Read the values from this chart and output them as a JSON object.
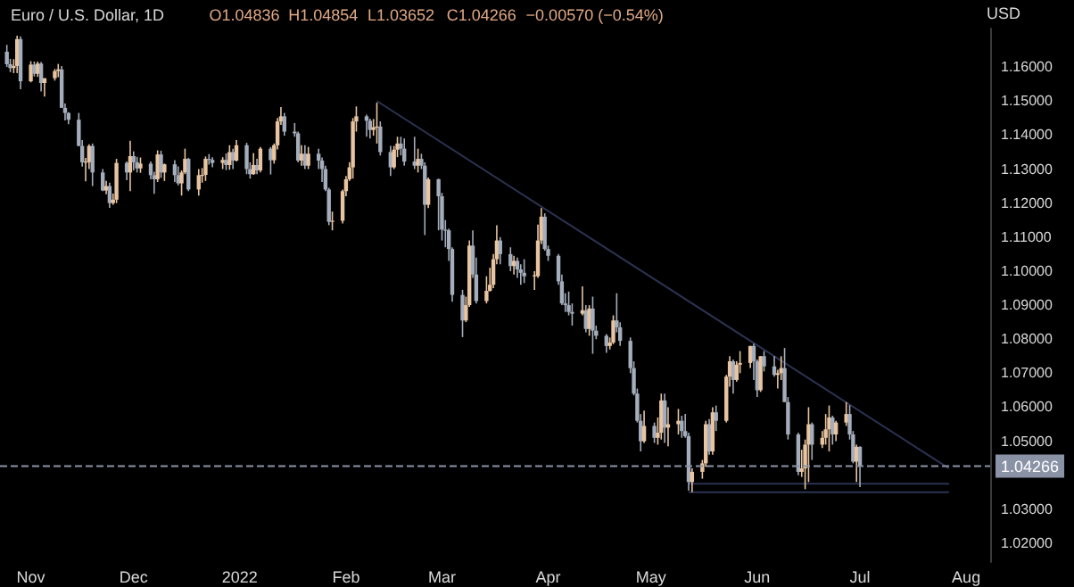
{
  "chart_data": {
    "type": "candlestick",
    "title": "Euro / U.S. Dollar, 1D",
    "annotations": [
      "O1.04836",
      "H1.04854",
      "L1.03652",
      "C1.04266",
      "−0.00570 (−0.54%)"
    ],
    "ylabel": "USD",
    "colors": [
      "#a4adbb",
      "#a4adbb",
      "#e8c4a0",
      "#e8c4a0",
      "#a4adbb",
      "#e8c4a0",
      "#a4adbb",
      "#e8c4a0",
      "#a4adbb",
      "#e8c4a0",
      "#e8c4a0",
      "#e8c4a0",
      "#a4adbb",
      "#a4adbb",
      "#a4adbb",
      "#a4adbb",
      "#a4adbb",
      "#e8c4a0",
      "#e8c4a0",
      "#a4adbb",
      "#a4adbb",
      "#e8c4a0",
      "#a4adbb",
      "#e8c4a0",
      "#e8c4a0",
      "#a4adbb",
      "#e8c4a0",
      "#a4adbb",
      "#a4adbb",
      "#e8c4a0",
      "#a4adbb",
      "#a4adbb",
      "#e8c4a0",
      "#a4adbb",
      "#e8c4a0",
      "#a4adbb",
      "#a4adbb",
      "#e8c4a0",
      "#e8c4a0",
      "#a4adbb",
      "#e8c4a0",
      "#e8c4a0",
      "#e8c4a0",
      "#a4adbb",
      "#a4adbb",
      "#e8c4a0",
      "#a4adbb",
      "#e8c4a0",
      "#a4adbb",
      "#e8c4a0",
      "#a4adbb",
      "#a4adbb",
      "#e8c4a0",
      "#a4adbb",
      "#e8c4a0",
      "#a4adbb",
      "#e8c4a0",
      "#e8c4a0",
      "#e8c4a0",
      "#a4adbb",
      "#a4adbb",
      "#a4adbb",
      "#e8c4a0",
      "#a4adbb",
      "#e8c4a0",
      "#a4adbb",
      "#a4adbb",
      "#a4adbb",
      "#a4adbb",
      "#e8c4a0",
      "#e8c4a0",
      "#e8c4a0",
      "#e8c4a0",
      "#e8c4a0",
      "#e8c4a0",
      "#a4adbb",
      "#a4adbb",
      "#e8c4a0",
      "#e8c4a0",
      "#a4adbb",
      "#a4adbb",
      "#e8c4a0",
      "#e8c4a0",
      "#a4adbb",
      "#a4adbb",
      "#a4adbb",
      "#e8c4a0",
      "#a4adbb",
      "#a4adbb",
      "#e8c4a0",
      "#a4adbb",
      "#a4adbb",
      "#a4adbb",
      "#a4adbb",
      "#a4adbb",
      "#a4adbb",
      "#e8c4a0",
      "#e8c4a0",
      "#a4adbb",
      "#a4adbb",
      "#e8c4a0",
      "#e8c4a0",
      "#e8c4a0",
      "#e8c4a0",
      "#a4adbb",
      "#a4adbb",
      "#e8c4a0",
      "#a4adbb",
      "#a4adbb",
      "#a4adbb",
      "#e8c4a0",
      "#e8c4a0",
      "#e8c4a0",
      "#a4adbb",
      "#a4adbb",
      "#a4adbb",
      "#a4adbb",
      "#a4adbb",
      "#a4adbb",
      "#a4adbb",
      "#e8c4a0",
      "#a4adbb",
      "#e8c4a0",
      "#a4adbb",
      "#a4adbb",
      "#a4adbb",
      "#e8c4a0",
      "#e8c4a0",
      "#a4adbb",
      "#a4adbb",
      "#a4adbb",
      "#a4adbb",
      "#a4adbb",
      "#a4adbb",
      "#e8c4a0",
      "#a4adbb",
      "#e8c4a0",
      "#e8c4a0",
      "#a4adbb",
      "#e8c4a0",
      "#e8c4a0",
      "#a4adbb",
      "#a4adbb",
      "#a4adbb",
      "#e8c4a0",
      "#e8c4a0",
      "#e8c4a0",
      "#a4adbb",
      "#e8c4a0",
      "#a4adbb",
      "#e8c4a0",
      "#e8c4a0",
      "#a4adbb",
      "#e8c4a0",
      "#e8c4a0",
      "#e8c4a0",
      "#a4adbb",
      "#a4adbb",
      "#e8c4a0",
      "#a4adbb",
      "#a4adbb",
      "#e8c4a0",
      "#e8c4a0",
      "#a4adbb",
      "#a4adbb",
      "#a4adbb",
      "#e8c4a0",
      "#e8c4a0",
      "#e8c4a0",
      "#a4adbb",
      "#e8c4a0",
      "#e8c4a0",
      "#e8c4a0",
      "#a4adbb",
      "#e8c4a0",
      "#e8c4a0",
      "#a4adbb",
      "#a4adbb",
      "#e8c4a0",
      "#a4adbb"
    ],
    "x": [
      "2021-10-25",
      "2021-10-26",
      "2021-10-27",
      "2021-10-28",
      "2021-10-29",
      "2021-11-01",
      "2021-11-02",
      "2021-11-03",
      "2021-11-04",
      "2021-11-05",
      "2021-11-08",
      "2021-11-09",
      "2021-11-10",
      "2021-11-11",
      "2021-11-12",
      "2021-11-15",
      "2021-11-16",
      "2021-11-17",
      "2021-11-18",
      "2021-11-19",
      "2021-11-22",
      "2021-11-23",
      "2021-11-24",
      "2021-11-25",
      "2021-11-26",
      "2021-11-29",
      "2021-11-30",
      "2021-12-01",
      "2021-12-02",
      "2021-12-03",
      "2021-12-06",
      "2021-12-07",
      "2021-12-08",
      "2021-12-09",
      "2021-12-10",
      "2021-12-13",
      "2021-12-14",
      "2021-12-15",
      "2021-12-16",
      "2021-12-17",
      "2021-12-20",
      "2021-12-21",
      "2021-12-22",
      "2021-12-23",
      "2021-12-24",
      "2021-12-27",
      "2021-12-28",
      "2021-12-29",
      "2021-12-30",
      "2021-12-31",
      "2022-01-03",
      "2022-01-04",
      "2022-01-05",
      "2022-01-06",
      "2022-01-07",
      "2022-01-10",
      "2022-01-11",
      "2022-01-12",
      "2022-01-13",
      "2022-01-14",
      "2022-01-17",
      "2022-01-18",
      "2022-01-19",
      "2022-01-20",
      "2022-01-21",
      "2022-01-24",
      "2022-01-25",
      "2022-01-26",
      "2022-01-27",
      "2022-01-28",
      "2022-01-31",
      "2022-02-01",
      "2022-02-02",
      "2022-02-03",
      "2022-02-04",
      "2022-02-07",
      "2022-02-08",
      "2022-02-09",
      "2022-02-10",
      "2022-02-11",
      "2022-02-14",
      "2022-02-15",
      "2022-02-16",
      "2022-02-17",
      "2022-02-18",
      "2022-02-21",
      "2022-02-22",
      "2022-02-23",
      "2022-02-24",
      "2022-02-25",
      "2022-02-28",
      "2022-03-01",
      "2022-03-02",
      "2022-03-03",
      "2022-03-04",
      "2022-03-07",
      "2022-03-08",
      "2022-03-09",
      "2022-03-10",
      "2022-03-11",
      "2022-03-14",
      "2022-03-15",
      "2022-03-16",
      "2022-03-17",
      "2022-03-18",
      "2022-03-21",
      "2022-03-22",
      "2022-03-23",
      "2022-03-24",
      "2022-03-25",
      "2022-03-28",
      "2022-03-29",
      "2022-03-30",
      "2022-03-31",
      "2022-04-01",
      "2022-04-04",
      "2022-04-05",
      "2022-04-06",
      "2022-04-07",
      "2022-04-08",
      "2022-04-11",
      "2022-04-12",
      "2022-04-13",
      "2022-04-14",
      "2022-04-15",
      "2022-04-18",
      "2022-04-19",
      "2022-04-20",
      "2022-04-21",
      "2022-04-22",
      "2022-04-25",
      "2022-04-26",
      "2022-04-27",
      "2022-04-28",
      "2022-04-29",
      "2022-05-02",
      "2022-05-03",
      "2022-05-04",
      "2022-05-05",
      "2022-05-06",
      "2022-05-09",
      "2022-05-10",
      "2022-05-11",
      "2022-05-12",
      "2022-05-13",
      "2022-05-16",
      "2022-05-17",
      "2022-05-18",
      "2022-05-19",
      "2022-05-20",
      "2022-05-23",
      "2022-05-24",
      "2022-05-25",
      "2022-05-26",
      "2022-05-27",
      "2022-05-30",
      "2022-05-31",
      "2022-06-01",
      "2022-06-02",
      "2022-06-03",
      "2022-06-06",
      "2022-06-07",
      "2022-06-08",
      "2022-06-09",
      "2022-06-10",
      "2022-06-13",
      "2022-06-14",
      "2022-06-15",
      "2022-06-16",
      "2022-06-17",
      "2022-06-20",
      "2022-06-21",
      "2022-06-22",
      "2022-06-23",
      "2022-06-24",
      "2022-06-27",
      "2022-06-28",
      "2022-06-29",
      "2022-06-30",
      "2022-07-01"
    ],
    "ohlc": [
      [
        1.1645,
        1.1665,
        1.16,
        1.1608
      ],
      [
        1.1608,
        1.1624,
        1.1585,
        1.1597
      ],
      [
        1.1597,
        1.1623,
        1.1582,
        1.1603
      ],
      [
        1.1603,
        1.1692,
        1.1582,
        1.1682
      ],
      [
        1.1682,
        1.169,
        1.1535,
        1.1558
      ],
      [
        1.1558,
        1.1617,
        1.1555,
        1.1607
      ],
      [
        1.1607,
        1.1616,
        1.1572,
        1.158
      ],
      [
        1.158,
        1.1616,
        1.1571,
        1.161
      ],
      [
        1.161,
        1.1615,
        1.1528,
        1.1553
      ],
      [
        1.1553,
        1.1567,
        1.1513,
        1.1567
      ],
      [
        1.1567,
        1.1594,
        1.156,
        1.1588
      ],
      [
        1.1588,
        1.1609,
        1.157,
        1.1593
      ],
      [
        1.1593,
        1.1603,
        1.148,
        1.148
      ],
      [
        1.148,
        1.1493,
        1.1443,
        1.1465
      ],
      [
        1.1465,
        1.1467,
        1.1432,
        1.1445
      ],
      [
        1.1445,
        1.1465,
        1.1367,
        1.1368
      ],
      [
        1.1368,
        1.1385,
        1.1307,
        1.132
      ],
      [
        1.132,
        1.1333,
        1.1264,
        1.1322
      ],
      [
        1.132,
        1.1373,
        1.13,
        1.1368
      ],
      [
        1.1368,
        1.1375,
        1.125,
        1.129
      ],
      [
        1.129,
        1.13,
        1.1235,
        1.1237
      ],
      [
        1.1237,
        1.1265,
        1.1226,
        1.125
      ],
      [
        1.125,
        1.126,
        1.1186,
        1.12
      ],
      [
        1.12,
        1.1228,
        1.1195,
        1.121
      ],
      [
        1.121,
        1.133,
        1.12,
        1.1318
      ],
      [
        1.1318,
        1.1322,
        1.1267,
        1.129
      ],
      [
        1.129,
        1.1383,
        1.1235,
        1.1338
      ],
      [
        1.1338,
        1.1352,
        1.1296,
        1.132
      ],
      [
        1.132,
        1.1336,
        1.129,
        1.1302
      ],
      [
        1.1302,
        1.1334,
        1.1289,
        1.1316
      ],
      [
        1.1316,
        1.1322,
        1.127,
        1.1282
      ],
      [
        1.1282,
        1.1292,
        1.1227,
        1.127
      ],
      [
        1.127,
        1.1355,
        1.1262,
        1.1343
      ],
      [
        1.1343,
        1.1354,
        1.1274,
        1.129
      ],
      [
        1.129,
        1.1316,
        1.1265,
        1.1314
      ],
      [
        1.1314,
        1.1326,
        1.1262,
        1.1282
      ],
      [
        1.1282,
        1.1308,
        1.1252,
        1.1258
      ],
      [
        1.1258,
        1.1296,
        1.1222,
        1.129
      ],
      [
        1.129,
        1.136,
        1.1285,
        1.133
      ],
      [
        1.133,
        1.1333,
        1.1235,
        1.124
      ],
      [
        1.124,
        1.13,
        1.1222,
        1.1282
      ],
      [
        1.1282,
        1.1303,
        1.126,
        1.1283
      ],
      [
        1.1283,
        1.1337,
        1.1265,
        1.133
      ],
      [
        1.133,
        1.1344,
        1.1313,
        1.1327
      ],
      [
        1.1327,
        1.1335,
        1.1305,
        1.1318
      ],
      [
        1.1318,
        1.1335,
        1.13,
        1.1327
      ],
      [
        1.1327,
        1.1346,
        1.1297,
        1.1312
      ],
      [
        1.1312,
        1.137,
        1.1298,
        1.135
      ],
      [
        1.135,
        1.136,
        1.13,
        1.1325
      ],
      [
        1.1325,
        1.1385,
        1.1322,
        1.137
      ],
      [
        1.137,
        1.1377,
        1.1285,
        1.13
      ],
      [
        1.13,
        1.132,
        1.1272,
        1.1285
      ],
      [
        1.1285,
        1.1347,
        1.1283,
        1.1312
      ],
      [
        1.1312,
        1.133,
        1.1285,
        1.1296
      ],
      [
        1.1296,
        1.1365,
        1.129,
        1.136
      ],
      [
        1.136,
        1.1365,
        1.1284,
        1.1326
      ],
      [
        1.1326,
        1.1375,
        1.1316,
        1.137
      ],
      [
        1.137,
        1.145,
        1.1358,
        1.144
      ],
      [
        1.144,
        1.1482,
        1.143,
        1.1455
      ],
      [
        1.1455,
        1.1465,
        1.1398,
        1.141
      ],
      [
        1.141,
        1.1435,
        1.1395,
        1.1405
      ],
      [
        1.1405,
        1.141,
        1.132,
        1.1325
      ],
      [
        1.1325,
        1.137,
        1.131,
        1.1345
      ],
      [
        1.1345,
        1.137,
        1.13,
        1.131
      ],
      [
        1.131,
        1.1365,
        1.13,
        1.1345
      ],
      [
        1.1345,
        1.136,
        1.13,
        1.1325
      ],
      [
        1.1325,
        1.1334,
        1.1262,
        1.13
      ],
      [
        1.13,
        1.131,
        1.1235,
        1.124
      ],
      [
        1.124,
        1.1245,
        1.1135,
        1.1145
      ],
      [
        1.1145,
        1.1175,
        1.112,
        1.1148
      ],
      [
        1.1148,
        1.124,
        1.114,
        1.1235
      ],
      [
        1.1235,
        1.128,
        1.122,
        1.127
      ],
      [
        1.127,
        1.132,
        1.1265,
        1.1305
      ],
      [
        1.1305,
        1.145,
        1.1272,
        1.144
      ],
      [
        1.144,
        1.1484,
        1.141,
        1.1455
      ],
      [
        1.1455,
        1.146,
        1.1395,
        1.1442
      ],
      [
        1.1442,
        1.1448,
        1.139,
        1.1415
      ],
      [
        1.1415,
        1.1447,
        1.1398,
        1.1423
      ],
      [
        1.1423,
        1.1495,
        1.1375,
        1.1425
      ],
      [
        1.1425,
        1.144,
        1.134,
        1.135
      ],
      [
        1.135,
        1.1368,
        1.128,
        1.1305
      ],
      [
        1.1305,
        1.1368,
        1.13,
        1.1357
      ],
      [
        1.1357,
        1.1395,
        1.1335,
        1.1375
      ],
      [
        1.1375,
        1.1395,
        1.134,
        1.136
      ],
      [
        1.136,
        1.139,
        1.131,
        1.1322
      ],
      [
        1.1322,
        1.1395,
        1.13,
        1.131
      ],
      [
        1.131,
        1.136,
        1.129,
        1.133
      ],
      [
        1.133,
        1.1345,
        1.13,
        1.131
      ],
      [
        1.131,
        1.132,
        1.1106,
        1.1195
      ],
      [
        1.1195,
        1.1275,
        1.1185,
        1.127
      ],
      [
        1.127,
        1.1272,
        1.112,
        1.122
      ],
      [
        1.122,
        1.123,
        1.109,
        1.1122
      ],
      [
        1.1122,
        1.115,
        1.107,
        1.112
      ],
      [
        1.112,
        1.1125,
        1.103,
        1.1065
      ],
      [
        1.1065,
        1.107,
        1.091,
        1.093
      ],
      [
        1.093,
        1.0945,
        1.0806,
        1.0855
      ],
      [
        1.0855,
        1.0925,
        1.085,
        1.09
      ],
      [
        1.09,
        1.109,
        1.0895,
        1.1075
      ],
      [
        1.1075,
        1.112,
        1.098,
        1.099
      ],
      [
        1.099,
        1.104,
        1.0905,
        1.0912
      ],
      [
        1.0912,
        1.0985,
        1.0905,
        1.0942
      ],
      [
        1.0942,
        1.101,
        1.094,
        1.096
      ],
      [
        1.096,
        1.105,
        1.095,
        1.1035
      ],
      [
        1.1035,
        1.1135,
        1.102,
        1.109
      ],
      [
        1.109,
        1.11,
        1.102,
        1.105
      ],
      [
        1.105,
        1.107,
        1.1,
        1.1015
      ],
      [
        1.1015,
        1.1045,
        1.099,
        1.103
      ],
      [
        1.103,
        1.104,
        1.098,
        1.1005
      ],
      [
        1.1005,
        1.102,
        1.096,
        1.0995
      ],
      [
        1.0995,
        1.1035,
        1.0965,
        1.0985
      ],
      [
        1.0985,
        1.1,
        1.0945,
        1.0988
      ],
      [
        1.0985,
        1.1137,
        1.098,
        1.109
      ],
      [
        1.109,
        1.1185,
        1.108,
        1.116
      ],
      [
        1.116,
        1.117,
        1.106,
        1.1065
      ],
      [
        1.1065,
        1.1075,
        1.103,
        1.1045
      ],
      [
        1.1045,
        1.105,
        1.096,
        1.097
      ],
      [
        1.097,
        1.099,
        1.09,
        1.0905
      ],
      [
        1.0905,
        1.0935,
        1.088,
        1.09
      ],
      [
        1.09,
        1.094,
        1.087,
        1.088
      ],
      [
        1.088,
        1.0905,
        1.084,
        1.0875
      ],
      [
        1.0875,
        1.0955,
        1.087,
        1.0885
      ],
      [
        1.0885,
        1.09,
        1.082,
        1.083
      ],
      [
        1.083,
        1.09,
        1.081,
        1.089
      ],
      [
        1.089,
        1.0925,
        1.0757,
        1.0825
      ],
      [
        1.0825,
        1.084,
        1.08,
        1.081
      ],
      [
        1.081,
        1.0815,
        1.076,
        1.078
      ],
      [
        1.078,
        1.0805,
        1.077,
        1.079
      ],
      [
        1.079,
        1.087,
        1.0785,
        1.0855
      ],
      [
        1.0855,
        1.0935,
        1.082,
        1.0835
      ],
      [
        1.0835,
        1.085,
        1.078,
        1.0795
      ],
      [
        1.0795,
        1.0805,
        1.07,
        1.0715
      ],
      [
        1.0715,
        1.0735,
        1.0635,
        1.064
      ],
      [
        1.064,
        1.0655,
        1.0555,
        1.056
      ],
      [
        1.056,
        1.058,
        1.047,
        1.05
      ],
      [
        1.05,
        1.059,
        1.0495,
        1.0545
      ],
      [
        1.0545,
        1.0555,
        1.0495,
        1.051
      ],
      [
        1.051,
        1.057,
        1.049,
        1.0525
      ],
      [
        1.0525,
        1.064,
        1.0505,
        1.062
      ],
      [
        1.062,
        1.064,
        1.0495,
        1.054
      ],
      [
        1.054,
        1.06,
        1.0485,
        1.055
      ],
      [
        1.055,
        1.0595,
        1.052,
        1.056
      ],
      [
        1.056,
        1.0575,
        1.051,
        1.053
      ],
      [
        1.053,
        1.058,
        1.051,
        1.0515
      ],
      [
        1.0515,
        1.0525,
        1.0355,
        1.038
      ],
      [
        1.038,
        1.042,
        1.035,
        1.041
      ],
      [
        1.041,
        1.0445,
        1.039,
        1.0435
      ],
      [
        1.0435,
        1.056,
        1.0425,
        1.055
      ],
      [
        1.055,
        1.0565,
        1.046,
        1.047
      ],
      [
        1.047,
        1.06,
        1.046,
        1.0585
      ],
      [
        1.0585,
        1.0605,
        1.053,
        1.056
      ],
      [
        1.056,
        1.0695,
        1.0555,
        1.069
      ],
      [
        1.069,
        1.075,
        1.066,
        1.0735
      ],
      [
        1.0735,
        1.074,
        1.064,
        1.068
      ],
      [
        1.068,
        1.0735,
        1.0675,
        1.0725
      ],
      [
        1.0725,
        1.0765,
        1.07,
        1.073
      ],
      [
        1.073,
        1.078,
        1.0715,
        1.078
      ],
      [
        1.078,
        1.0787,
        1.068,
        1.0735
      ],
      [
        1.0735,
        1.074,
        1.063,
        1.065
      ],
      [
        1.065,
        1.075,
        1.0645,
        1.075
      ],
      [
        1.075,
        1.0765,
        1.0705,
        1.072
      ],
      [
        1.072,
        1.075,
        1.069,
        1.0695
      ],
      [
        1.0695,
        1.071,
        1.0655,
        1.07
      ],
      [
        1.07,
        1.075,
        1.068,
        1.0715
      ],
      [
        1.0715,
        1.0774,
        1.0615,
        1.0615
      ],
      [
        1.0615,
        1.063,
        1.0505,
        1.052
      ],
      [
        1.052,
        1.0525,
        1.04,
        1.041
      ],
      [
        1.041,
        1.0475,
        1.0395,
        1.042
      ],
      [
        1.042,
        1.0505,
        1.0359,
        1.049
      ],
      [
        1.049,
        1.06,
        1.038,
        1.055
      ],
      [
        1.055,
        1.0555,
        1.0445,
        1.049
      ],
      [
        1.049,
        1.053,
        1.048,
        1.051
      ],
      [
        1.051,
        1.058,
        1.049,
        1.0535
      ],
      [
        1.0535,
        1.0605,
        1.047,
        1.057
      ],
      [
        1.057,
        1.0575,
        1.049,
        1.052
      ],
      [
        1.052,
        1.056,
        1.05,
        1.0555
      ],
      [
        1.0555,
        1.0615,
        1.0545,
        1.058
      ],
      [
        1.058,
        1.0606,
        1.0505,
        1.052
      ],
      [
        1.052,
        1.053,
        1.0435,
        1.044
      ],
      [
        1.044,
        1.049,
        1.038,
        1.04836
      ],
      [
        1.04836,
        1.04854,
        1.03652,
        1.04266
      ]
    ],
    "series": [
      {
        "type": "line",
        "color": "#2c3352",
        "x": [
          "2022-02-10",
          "2022-07-27"
        ],
        "values": [
          1.15,
          1.042
        ]
      },
      {
        "type": "line",
        "color": "#2c3352",
        "x": [
          "2022-05-12",
          "2022-07-27"
        ],
        "values": [
          1.0375,
          1.0375
        ]
      },
      {
        "type": "line",
        "color": "#2c3352",
        "x": [
          "2022-05-12",
          "2022-07-27"
        ],
        "values": [
          1.035,
          1.035
        ]
      }
    ],
    "ref_lines": [
      {
        "axis": "y",
        "value": 1.04266,
        "label": "1.04266",
        "color": "#8a93a6",
        "line_style": "dashed"
      }
    ],
    "xlim": [
      "2021-10-23",
      "2022-08-08"
    ],
    "xticks": [
      {
        "value": "2021-11-01",
        "label": "Nov"
      },
      {
        "value": "2021-12-01",
        "label": "Dec"
      },
      {
        "value": "2022-01-01",
        "label": "2022"
      },
      {
        "value": "2022-02-01",
        "label": "Feb"
      },
      {
        "value": "2022-03-01",
        "label": "Mar"
      },
      {
        "value": "2022-04-01",
        "label": "Apr"
      },
      {
        "value": "2022-05-01",
        "label": "May"
      },
      {
        "value": "2022-06-01",
        "label": "Jun"
      },
      {
        "value": "2022-07-01",
        "label": "Jul"
      },
      {
        "value": "2022-08-01",
        "label": "Aug"
      }
    ],
    "ylim": [
      1.0145,
      1.1713
    ],
    "yticks": [
      {
        "value": 1.02,
        "label": "1.02000"
      },
      {
        "value": 1.03,
        "label": "1.03000"
      },
      {
        "value": 1.05,
        "label": "1.05000"
      },
      {
        "value": 1.06,
        "label": "1.06000"
      },
      {
        "value": 1.07,
        "label": "1.07000"
      },
      {
        "value": 1.08,
        "label": "1.08000"
      },
      {
        "value": 1.09,
        "label": "1.09000"
      },
      {
        "value": 1.1,
        "label": "1.10000"
      },
      {
        "value": 1.11,
        "label": "1.11000"
      },
      {
        "value": 1.12,
        "label": "1.12000"
      },
      {
        "value": 1.13,
        "label": "1.13000"
      },
      {
        "value": 1.14,
        "label": "1.14000"
      },
      {
        "value": 1.15,
        "label": "1.15000"
      },
      {
        "value": 1.16,
        "label": "1.16000"
      }
    ]
  }
}
